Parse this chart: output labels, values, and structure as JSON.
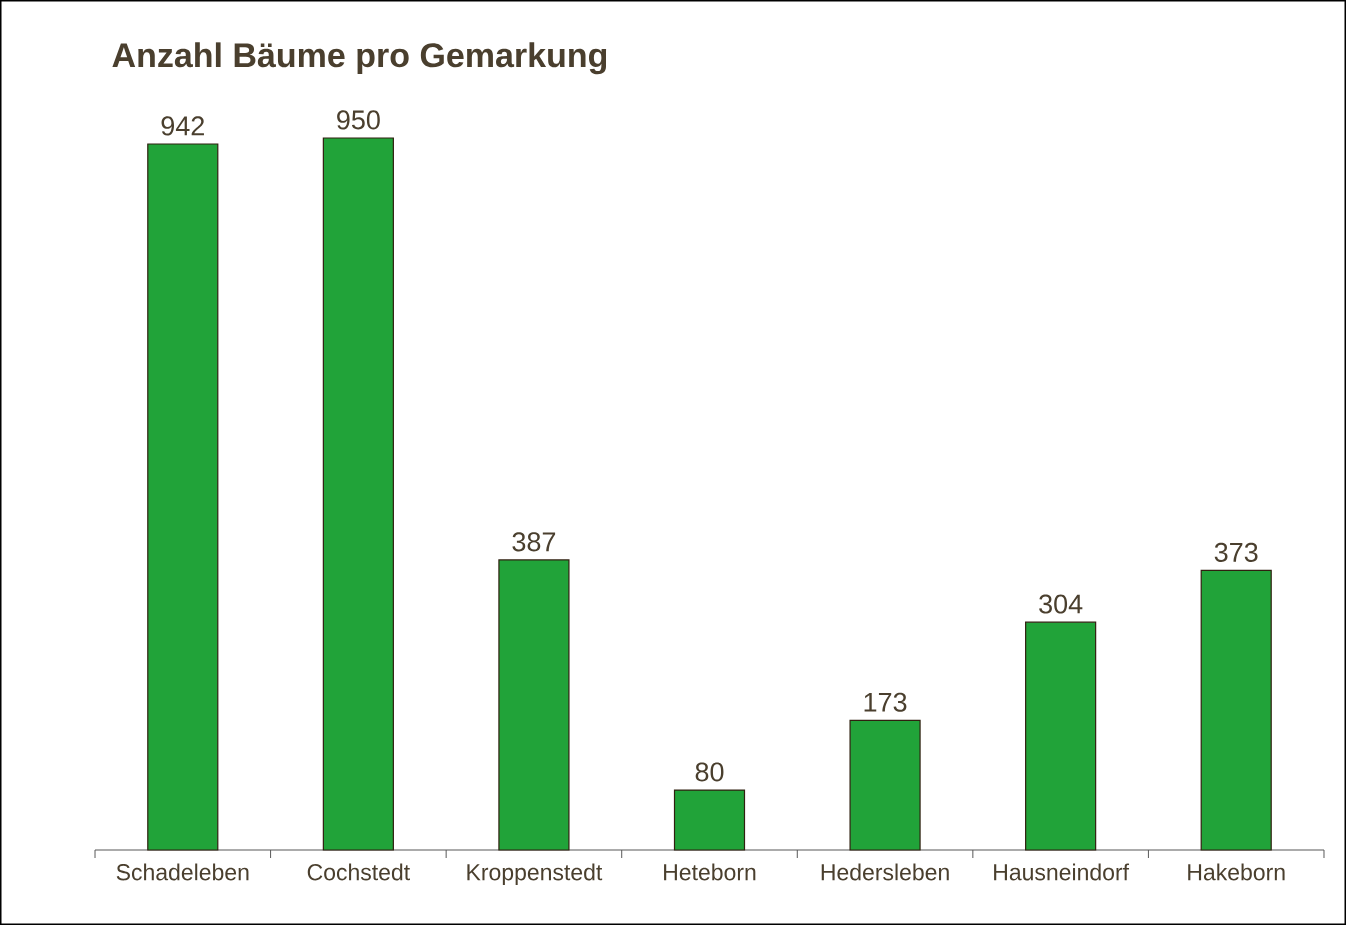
{
  "chart_data": {
    "type": "bar",
    "title": "Anzahl Bäume pro Gemarkung",
    "categories": [
      "Schadeleben",
      "Cochstedt",
      "Kroppenstedt",
      "Heteborn",
      "Hedersleben",
      "Hausneindorf",
      "Hakeborn"
    ],
    "values": [
      942,
      950,
      387,
      80,
      173,
      304,
      373
    ],
    "color": "#21a339",
    "data_labels": true
  }
}
